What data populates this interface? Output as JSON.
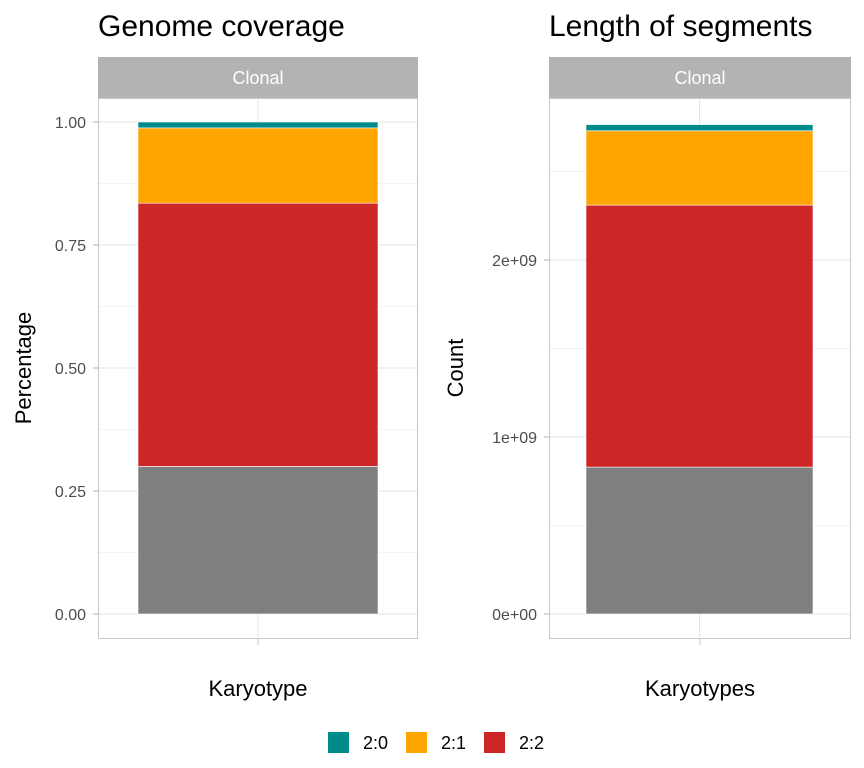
{
  "chart_data": [
    {
      "type": "bar",
      "stacked": true,
      "title": "Genome coverage",
      "facet_label": "Clonal",
      "xlabel": "Karyotype",
      "ylabel": "Percentage",
      "ylim": [
        0,
        1.04
      ],
      "yticks": [
        0,
        0.25,
        0.5,
        0.75,
        1.0
      ],
      "ytick_labels": [
        "0.00",
        "0.25",
        "0.50",
        "0.75",
        "1.00"
      ],
      "categories": [
        ""
      ],
      "series": [
        {
          "name": "",
          "color": "#7f7f7f",
          "values": [
            0.3
          ]
        },
        {
          "name": "2:2",
          "color": "#cd2626",
          "values": [
            0.535
          ]
        },
        {
          "name": "2:1",
          "color": "#ffa500",
          "values": [
            0.153
          ]
        },
        {
          "name": "2:0",
          "color": "#008b8b",
          "values": [
            0.012
          ]
        }
      ],
      "grid": true
    },
    {
      "type": "bar",
      "stacked": true,
      "title": "Length of segments",
      "facet_label": "Clonal",
      "xlabel": "Karyotypes",
      "ylabel": "Count",
      "ylim": [
        0,
        2850000000
      ],
      "yticks": [
        0,
        1000000000,
        2000000000
      ],
      "ytick_labels": [
        "0e+00",
        "1e+09",
        "2e+09"
      ],
      "categories": [
        ""
      ],
      "series": [
        {
          "name": "",
          "color": "#7f7f7f",
          "values": [
            830000000
          ]
        },
        {
          "name": "2:2",
          "color": "#cd2626",
          "values": [
            1480000000
          ]
        },
        {
          "name": "2:1",
          "color": "#ffa500",
          "values": [
            420000000
          ]
        },
        {
          "name": "2:0",
          "color": "#008b8b",
          "values": [
            35000000
          ]
        }
      ],
      "grid": true
    }
  ],
  "legend": {
    "placement": "bottom",
    "items": [
      {
        "label": "2:0",
        "color": "#008b8b"
      },
      {
        "label": "2:1",
        "color": "#ffa500"
      },
      {
        "label": "2:2",
        "color": "#cd2626"
      }
    ]
  }
}
